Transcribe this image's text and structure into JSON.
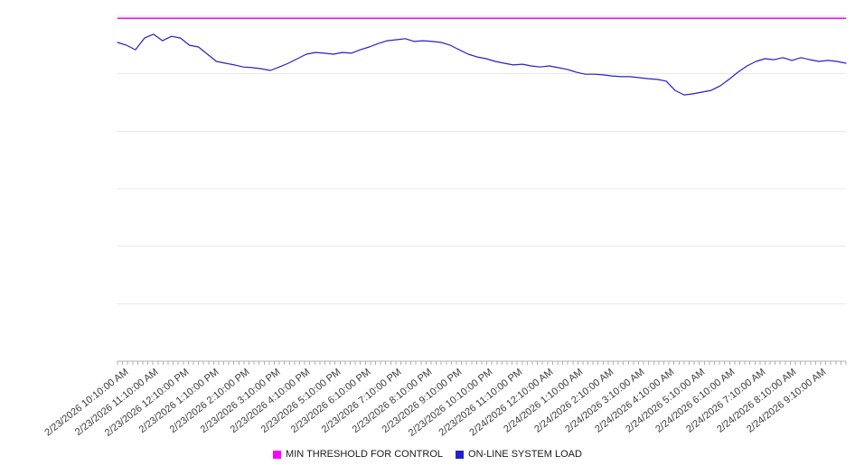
{
  "chart_data": {
    "type": "line",
    "title": "",
    "xlabel": "",
    "ylabel": "",
    "grid": true,
    "legend_position": "bottom-center",
    "y_axis": {
      "visible": false,
      "ylim": [
        0,
        100
      ],
      "gridline_count": 7
    },
    "x_axis": {
      "labels": [
        "2/23/2026 10:10:00 AM",
        "2/23/2026 11:10:00 AM",
        "2/23/2026 12:10:00 PM",
        "2/23/2026 1:10:00 PM",
        "2/23/2026 2:10:00 PM",
        "2/23/2026 3:10:00 PM",
        "2/23/2026 4:10:00 PM",
        "2/23/2026 5:10:00 PM",
        "2/23/2026 6:10:00 PM",
        "2/23/2026 7:10:00 PM",
        "2/23/2026 8:10:00 PM",
        "2/23/2026 9:10:00 PM",
        "2/23/2026 10:10:00 PM",
        "2/23/2026 11:10:00 PM",
        "2/24/2026 12:10:00 AM",
        "2/24/2026 1:10:00 AM",
        "2/24/2026 2:10:00 AM",
        "2/24/2026 3:10:00 AM",
        "2/24/2026 4:10:00 AM",
        "2/24/2026 5:10:00 AM",
        "2/24/2026 6:10:00 AM",
        "2/24/2026 7:10:00 AM",
        "2/24/2026 8:10:00 AM",
        "2/24/2026 9:10:00 AM"
      ],
      "minor_ticks_per_interval": 6
    },
    "series": [
      {
        "name": "MIN THRESHOLD FOR CONTROL",
        "color": "#ff00ff",
        "style": "constant",
        "value": 99.4
      },
      {
        "name": "ON-LINE SYSTEM LOAD",
        "color": "#2222cc",
        "style": "line",
        "values": [
          92.4,
          91.6,
          90.3,
          93.7,
          94.8,
          92.9,
          94.2,
          93.7,
          91.6,
          91.1,
          89.0,
          86.9,
          86.4,
          85.9,
          85.3,
          85.1,
          84.8,
          84.3,
          85.3,
          86.4,
          87.7,
          89.0,
          89.5,
          89.3,
          89.0,
          89.5,
          89.3,
          90.3,
          91.1,
          92.1,
          92.9,
          93.2,
          93.5,
          92.7,
          92.9,
          92.7,
          92.4,
          91.6,
          90.3,
          89.0,
          88.2,
          87.7,
          86.9,
          86.4,
          85.9,
          86.1,
          85.6,
          85.3,
          85.6,
          85.1,
          84.6,
          83.8,
          83.2,
          83.2,
          83.0,
          82.7,
          82.5,
          82.5,
          82.2,
          81.9,
          81.7,
          81.2,
          78.5,
          77.2,
          77.5,
          78.0,
          78.5,
          79.8,
          81.7,
          83.8,
          85.6,
          86.9,
          87.7,
          87.4,
          88.0,
          87.2,
          88.0,
          87.4,
          86.9,
          87.2,
          86.9,
          86.4
        ]
      }
    ]
  },
  "colors": {
    "gridline": "#e8e8e8",
    "axis": "#b0b0b0",
    "tick": "#b0b0b0",
    "label_text": "#3c3c3c"
  }
}
